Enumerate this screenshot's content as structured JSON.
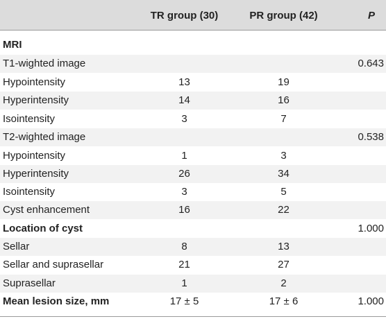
{
  "header": {
    "col1": "",
    "col2": "TR group (30)",
    "col3": "PR group (42)",
    "col4": "P"
  },
  "rows": [
    {
      "label": "MRI",
      "tr": "",
      "pr": "",
      "p": "",
      "bold": true
    },
    {
      "label": "T1-wighted image",
      "tr": "",
      "pr": "",
      "p": "0.643"
    },
    {
      "label": "Hypointensity",
      "tr": "13",
      "pr": "19",
      "p": ""
    },
    {
      "label": "Hyperintensity",
      "tr": "14",
      "pr": "16",
      "p": ""
    },
    {
      "label": "Isointensity",
      "tr": "3",
      "pr": "7",
      "p": ""
    },
    {
      "label": "T2-wighted image",
      "tr": "",
      "pr": "",
      "p": "0.538"
    },
    {
      "label": "Hypointensity",
      "tr": "1",
      "pr": "3",
      "p": ""
    },
    {
      "label": "Hyperintensity",
      "tr": "26",
      "pr": "34",
      "p": ""
    },
    {
      "label": "Isointensity",
      "tr": "3",
      "pr": "5",
      "p": ""
    },
    {
      "label": "Cyst enhancement",
      "tr": "16",
      "pr": "22",
      "p": ""
    },
    {
      "label": "Location of cyst",
      "tr": "",
      "pr": "",
      "p": "1.000",
      "bold": true
    },
    {
      "label": "Sellar",
      "tr": "8",
      "pr": "13",
      "p": ""
    },
    {
      "label": "Sellar and suprasellar",
      "tr": "21",
      "pr": "27",
      "p": ""
    },
    {
      "label": "Suprasellar",
      "tr": "1",
      "pr": "2",
      "p": ""
    },
    {
      "label": "Mean lesion size, mm",
      "tr": "17 ± 5",
      "pr": "17 ± 6",
      "p": "1.000",
      "bold": true
    }
  ]
}
